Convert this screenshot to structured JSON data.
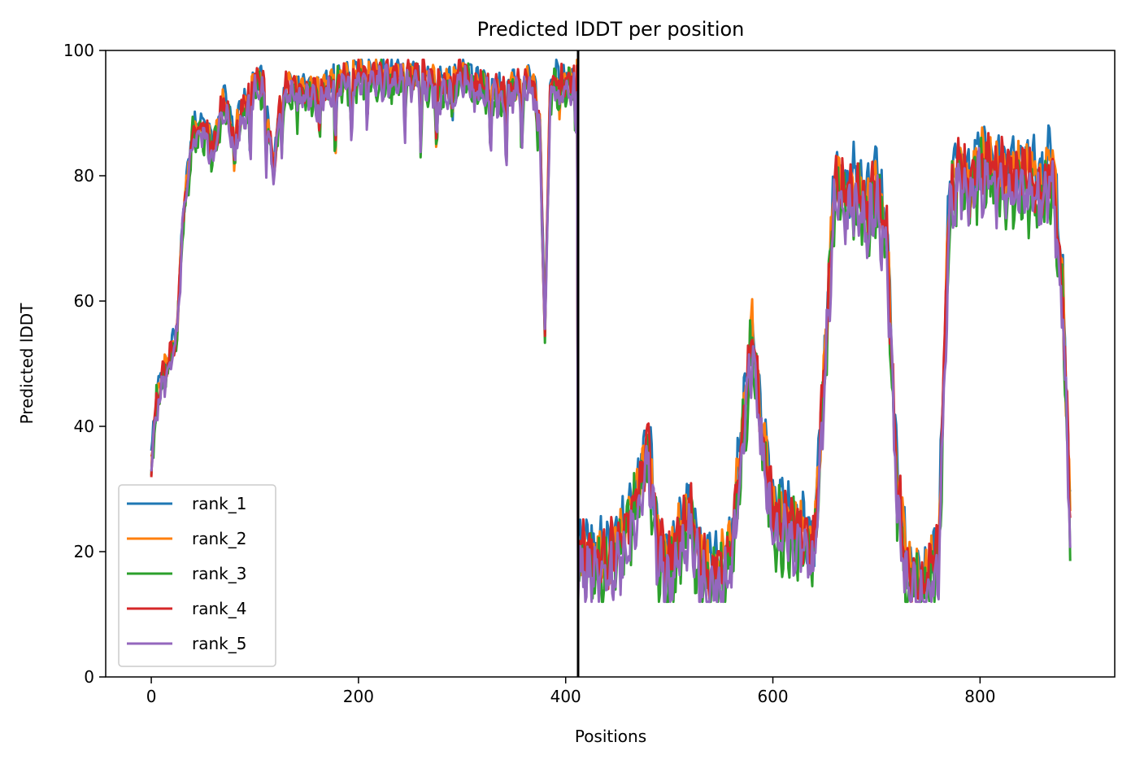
{
  "chart_data": {
    "type": "line",
    "title": "Predicted lDDT per position",
    "xlabel": "Positions",
    "ylabel": "Predicted lDDT",
    "xlim": [
      -44,
      930
    ],
    "ylim": [
      0,
      100
    ],
    "xticks": [
      0,
      200,
      400,
      600,
      800
    ],
    "yticks": [
      0,
      20,
      40,
      60,
      80,
      100
    ],
    "grid": false,
    "legend_position": "lower-left",
    "chain_break_x": 412,
    "x_end": 887,
    "series": [
      {
        "name": "rank_1",
        "color": "#1f77b4",
        "seed": 1,
        "bias": 1.5,
        "amp": 1.0
      },
      {
        "name": "rank_2",
        "color": "#ff7f0e",
        "seed": 2,
        "bias": 0.8,
        "amp": 0.9
      },
      {
        "name": "rank_3",
        "color": "#2ca02c",
        "seed": 3,
        "bias": -1.5,
        "amp": 1.3
      },
      {
        "name": "rank_4",
        "color": "#d62728",
        "seed": 4,
        "bias": 0.5,
        "amp": 1.0
      },
      {
        "name": "rank_5",
        "color": "#9467bd",
        "seed": 5,
        "bias": -2.0,
        "amp": 1.1
      }
    ],
    "profile_x": [
      0,
      5,
      12,
      20,
      25,
      30,
      40,
      50,
      60,
      70,
      80,
      90,
      100,
      110,
      118,
      125,
      140,
      160,
      180,
      200,
      220,
      240,
      260,
      280,
      300,
      320,
      340,
      360,
      370,
      375,
      380,
      385,
      390,
      400,
      411,
      412,
      420,
      440,
      460,
      470,
      480,
      490,
      500,
      510,
      520,
      530,
      540,
      560,
      570,
      580,
      590,
      600,
      620,
      640,
      650,
      660,
      670,
      680,
      690,
      700,
      710,
      720,
      730,
      740,
      750,
      760,
      770,
      780,
      790,
      800,
      820,
      840,
      860,
      870,
      880,
      887
    ],
    "profile_y": [
      34,
      44,
      48,
      52,
      55,
      72,
      87,
      88,
      84,
      92,
      86,
      91,
      95,
      94,
      80,
      94,
      94,
      93,
      95,
      96,
      96,
      96,
      96,
      94,
      96,
      94,
      93,
      95,
      94,
      88,
      55,
      94,
      95,
      95,
      96,
      20,
      19,
      18,
      24,
      30,
      36,
      20,
      17,
      22,
      26,
      18,
      16,
      20,
      38,
      55,
      38,
      26,
      24,
      20,
      50,
      80,
      76,
      78,
      74,
      78,
      70,
      30,
      16,
      15,
      16,
      20,
      75,
      82,
      78,
      82,
      80,
      80,
      78,
      82,
      60,
      25
    ]
  }
}
